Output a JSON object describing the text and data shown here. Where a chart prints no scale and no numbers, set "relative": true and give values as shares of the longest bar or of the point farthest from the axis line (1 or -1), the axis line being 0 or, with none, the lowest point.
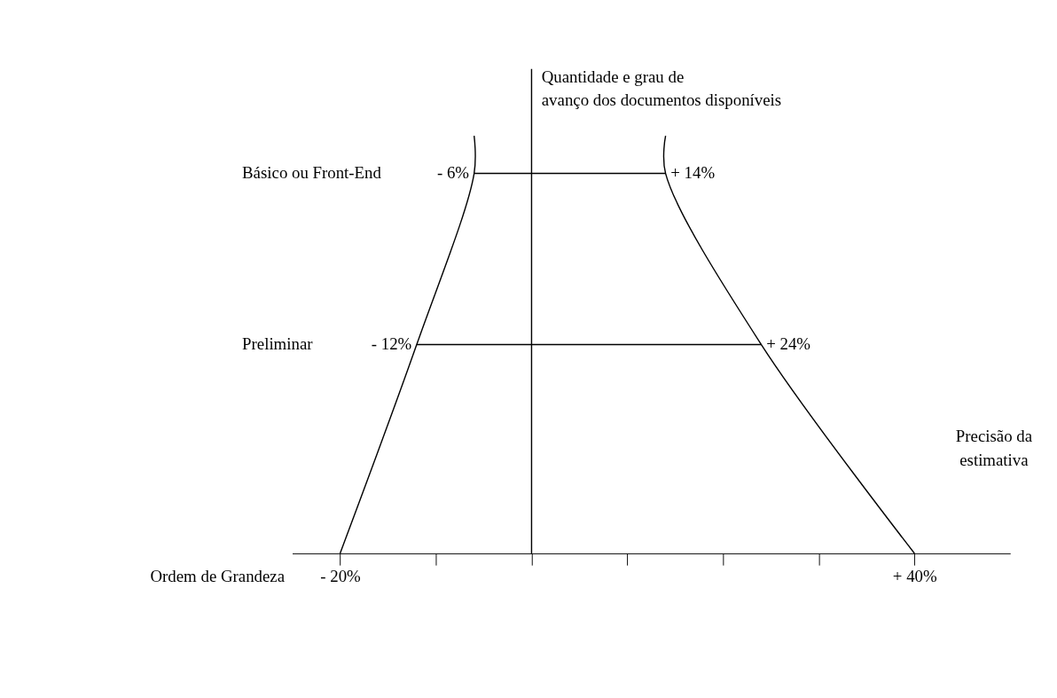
{
  "chart_data": {
    "type": "line",
    "relative": true,
    "xlabel": "Precisão da estimativa",
    "ylabel": "Quantidade e grau de avanço dos documentos disponíveis",
    "xlim": [
      -25,
      50
    ],
    "xticks": [
      {
        "value": -20,
        "label": "- 20%"
      },
      {
        "value": -10,
        "label": null
      },
      {
        "value": 0,
        "label": null
      },
      {
        "value": 10,
        "label": null
      },
      {
        "value": 20,
        "label": null
      },
      {
        "value": 30,
        "label": null
      },
      {
        "value": 40,
        "label": "+ 40%"
      }
    ],
    "series": [
      {
        "color": "#000000",
        "x": [
          -20,
          -12,
          -6,
          -6
        ],
        "values": [
          0,
          0.5,
          0.91,
          1
        ]
      },
      {
        "color": "#000000",
        "x": [
          40,
          24,
          14,
          14
        ],
        "values": [
          0,
          0.5,
          0.91,
          1
        ]
      },
      {
        "color": "#000000",
        "x": [
          -12,
          24
        ],
        "values": [
          0.5,
          0.5
        ]
      },
      {
        "color": "#000000",
        "x": [
          -6,
          14
        ],
        "values": [
          0.91,
          0.91
        ]
      }
    ],
    "ref_lines": [
      {
        "axis": "x",
        "value": 0,
        "label": null,
        "color": "#000000"
      }
    ],
    "annotations": [
      {
        "text": "- 6%",
        "x": -6,
        "y": 0.91
      },
      {
        "text": "+ 14%",
        "x": 14,
        "y": 0.91
      },
      {
        "text": "- 12%",
        "x": -12,
        "y": 0.5
      },
      {
        "text": "+ 24%",
        "x": 24,
        "y": 0.5
      },
      "Básico ou Front-End",
      "Preliminar",
      "Ordem de Grandeza"
    ],
    "marker": "none",
    "line_style": "solid"
  }
}
